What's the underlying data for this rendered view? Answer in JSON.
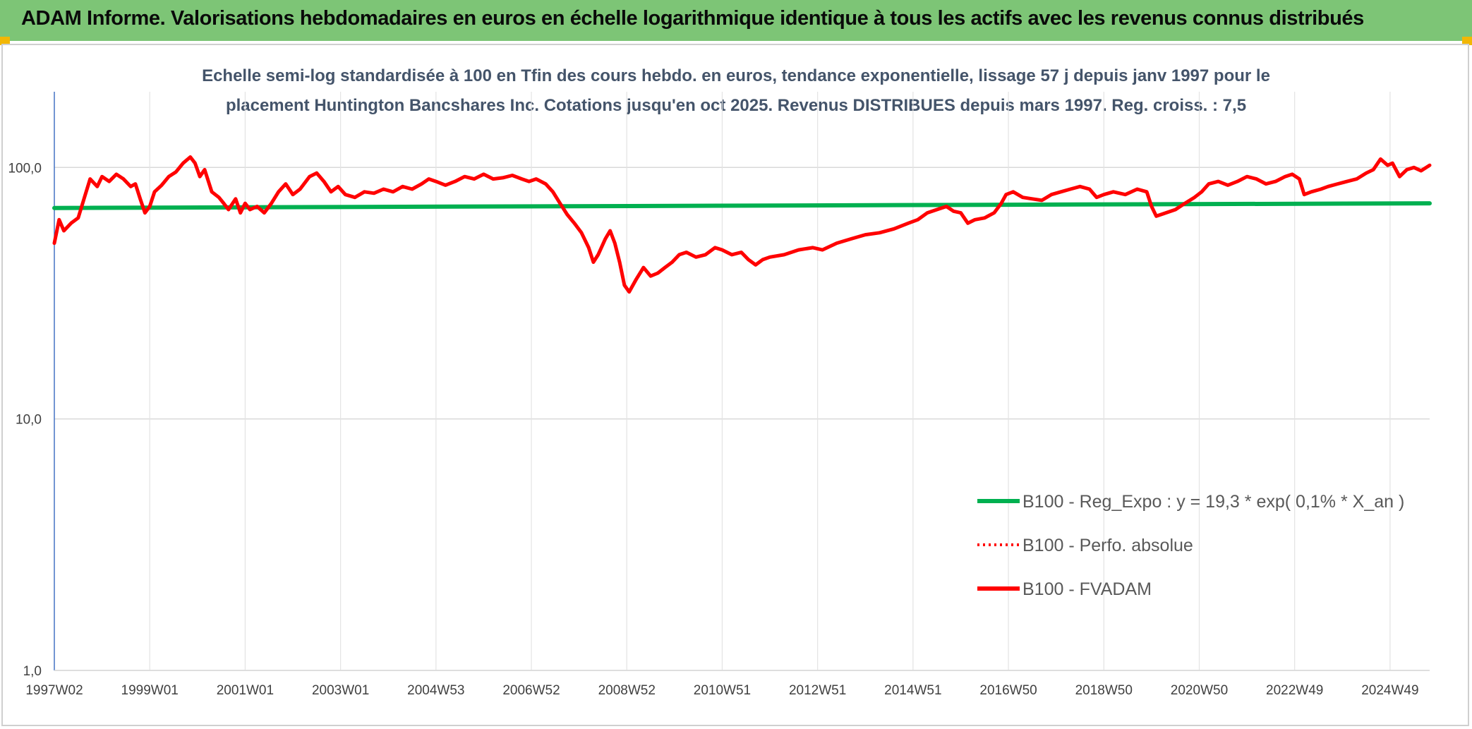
{
  "header": {
    "title": "ADAM Informe. Valorisations hebdomadaires en euros en échelle logarithmique identique à tous les actifs avec les revenus connus distribués"
  },
  "chart_data": {
    "type": "line",
    "title_lines": [
      "Echelle semi-log standardisée à 100 en Tfin des cours hebdo. en euros, tendance exponentielle, lissage 57 j depuis janv 1997 pour le",
      "placement Huntington Bancshares Inc. Cotations jusqu'en oct 2025. Revenus DISTRIBUES depuis mars 1997. Reg. croiss. : 7,5"
    ],
    "y_scale": "log",
    "ylim": [
      1,
      200
    ],
    "y_ticks": [
      {
        "value": 1,
        "label": "1,0"
      },
      {
        "value": 10,
        "label": "10,0"
      },
      {
        "value": 100,
        "label": "100,0"
      }
    ],
    "xlim": [
      1997.0,
      2025.83
    ],
    "x_ticks": [
      {
        "year": 1997.0,
        "label": "1997W02"
      },
      {
        "year": 1999.0,
        "label": "1999W01"
      },
      {
        "year": 2001.0,
        "label": "2001W01"
      },
      {
        "year": 2003.0,
        "label": "2003W01"
      },
      {
        "year": 2005.0,
        "label": "2004W53"
      },
      {
        "year": 2007.0,
        "label": "2006W52"
      },
      {
        "year": 2009.0,
        "label": "2008W52"
      },
      {
        "year": 2011.0,
        "label": "2010W51"
      },
      {
        "year": 2013.0,
        "label": "2012W51"
      },
      {
        "year": 2015.0,
        "label": "2014W51"
      },
      {
        "year": 2017.0,
        "label": "2016W50"
      },
      {
        "year": 2019.0,
        "label": "2018W50"
      },
      {
        "year": 2021.0,
        "label": "2020W50"
      },
      {
        "year": 2023.0,
        "label": "2022W49"
      },
      {
        "year": 2025.0,
        "label": "2024W49"
      }
    ],
    "grid": true,
    "legend_position": "lower-right",
    "series": [
      {
        "name": "B100 - Reg_Expo : y = 19,3 * exp( 0,1% *  X_an )",
        "color": "#00b050",
        "style": "solid",
        "points": [
          [
            1997.0,
            69
          ],
          [
            2025.83,
            72
          ]
        ]
      },
      {
        "name": "B100 - Perfo. absolue",
        "color": "#ff0000",
        "style": "dotted",
        "points": []
      },
      {
        "name": "B100 - FVADAM",
        "color": "#ff0000",
        "style": "solid",
        "points": [
          [
            1997.0,
            50
          ],
          [
            1997.1,
            62
          ],
          [
            1997.2,
            56
          ],
          [
            1997.35,
            60
          ],
          [
            1997.5,
            63
          ],
          [
            1997.65,
            78
          ],
          [
            1997.75,
            90
          ],
          [
            1997.9,
            84
          ],
          [
            1998.0,
            92
          ],
          [
            1998.15,
            88
          ],
          [
            1998.3,
            94
          ],
          [
            1998.45,
            90
          ],
          [
            1998.6,
            84
          ],
          [
            1998.7,
            86
          ],
          [
            1998.8,
            75
          ],
          [
            1998.9,
            66
          ],
          [
            1999.0,
            70
          ],
          [
            1999.1,
            80
          ],
          [
            1999.25,
            85
          ],
          [
            1999.4,
            92
          ],
          [
            1999.55,
            96
          ],
          [
            1999.7,
            104
          ],
          [
            1999.85,
            110
          ],
          [
            1999.95,
            104
          ],
          [
            2000.05,
            92
          ],
          [
            2000.15,
            98
          ],
          [
            2000.3,
            80
          ],
          [
            2000.45,
            76
          ],
          [
            2000.55,
            72
          ],
          [
            2000.65,
            68
          ],
          [
            2000.8,
            75
          ],
          [
            2000.9,
            66
          ],
          [
            2001.0,
            72
          ],
          [
            2001.1,
            68
          ],
          [
            2001.25,
            70
          ],
          [
            2001.4,
            66
          ],
          [
            2001.55,
            72
          ],
          [
            2001.7,
            80
          ],
          [
            2001.85,
            86
          ],
          [
            2002.0,
            78
          ],
          [
            2002.15,
            82
          ],
          [
            2002.35,
            92
          ],
          [
            2002.5,
            95
          ],
          [
            2002.65,
            88
          ],
          [
            2002.8,
            80
          ],
          [
            2002.95,
            84
          ],
          [
            2003.1,
            78
          ],
          [
            2003.3,
            76
          ],
          [
            2003.5,
            80
          ],
          [
            2003.7,
            79
          ],
          [
            2003.9,
            82
          ],
          [
            2004.1,
            80
          ],
          [
            2004.3,
            84
          ],
          [
            2004.5,
            82
          ],
          [
            2004.7,
            86
          ],
          [
            2004.85,
            90
          ],
          [
            2005.0,
            88
          ],
          [
            2005.2,
            85
          ],
          [
            2005.4,
            88
          ],
          [
            2005.6,
            92
          ],
          [
            2005.8,
            90
          ],
          [
            2006.0,
            94
          ],
          [
            2006.2,
            90
          ],
          [
            2006.4,
            91
          ],
          [
            2006.6,
            93
          ],
          [
            2006.8,
            90
          ],
          [
            2006.95,
            88
          ],
          [
            2007.1,
            90
          ],
          [
            2007.3,
            86
          ],
          [
            2007.45,
            80
          ],
          [
            2007.6,
            72
          ],
          [
            2007.75,
            65
          ],
          [
            2007.9,
            60
          ],
          [
            2008.05,
            55
          ],
          [
            2008.2,
            48
          ],
          [
            2008.3,
            42
          ],
          [
            2008.4,
            45
          ],
          [
            2008.55,
            52
          ],
          [
            2008.65,
            56
          ],
          [
            2008.75,
            50
          ],
          [
            2008.85,
            42
          ],
          [
            2008.95,
            34
          ],
          [
            2009.05,
            32
          ],
          [
            2009.2,
            36
          ],
          [
            2009.35,
            40
          ],
          [
            2009.5,
            37
          ],
          [
            2009.65,
            38
          ],
          [
            2009.8,
            40
          ],
          [
            2009.95,
            42
          ],
          [
            2010.1,
            45
          ],
          [
            2010.25,
            46
          ],
          [
            2010.45,
            44
          ],
          [
            2010.65,
            45
          ],
          [
            2010.85,
            48
          ],
          [
            2011.0,
            47
          ],
          [
            2011.2,
            45
          ],
          [
            2011.4,
            46
          ],
          [
            2011.55,
            43
          ],
          [
            2011.7,
            41
          ],
          [
            2011.85,
            43
          ],
          [
            2012.0,
            44
          ],
          [
            2012.3,
            45
          ],
          [
            2012.6,
            47
          ],
          [
            2012.9,
            48
          ],
          [
            2013.1,
            47
          ],
          [
            2013.4,
            50
          ],
          [
            2013.7,
            52
          ],
          [
            2014.0,
            54
          ],
          [
            2014.3,
            55
          ],
          [
            2014.6,
            57
          ],
          [
            2014.9,
            60
          ],
          [
            2015.1,
            62
          ],
          [
            2015.3,
            66
          ],
          [
            2015.5,
            68
          ],
          [
            2015.7,
            70
          ],
          [
            2015.85,
            67
          ],
          [
            2016.0,
            66
          ],
          [
            2016.15,
            60
          ],
          [
            2016.3,
            62
          ],
          [
            2016.5,
            63
          ],
          [
            2016.7,
            66
          ],
          [
            2016.85,
            72
          ],
          [
            2016.95,
            78
          ],
          [
            2017.1,
            80
          ],
          [
            2017.3,
            76
          ],
          [
            2017.5,
            75
          ],
          [
            2017.7,
            74
          ],
          [
            2017.9,
            78
          ],
          [
            2018.1,
            80
          ],
          [
            2018.3,
            82
          ],
          [
            2018.5,
            84
          ],
          [
            2018.7,
            82
          ],
          [
            2018.85,
            76
          ],
          [
            2019.0,
            78
          ],
          [
            2019.2,
            80
          ],
          [
            2019.45,
            78
          ],
          [
            2019.7,
            82
          ],
          [
            2019.9,
            80
          ],
          [
            2020.0,
            70
          ],
          [
            2020.1,
            64
          ],
          [
            2020.3,
            66
          ],
          [
            2020.5,
            68
          ],
          [
            2020.7,
            72
          ],
          [
            2020.9,
            76
          ],
          [
            2021.05,
            80
          ],
          [
            2021.2,
            86
          ],
          [
            2021.4,
            88
          ],
          [
            2021.6,
            85
          ],
          [
            2021.8,
            88
          ],
          [
            2022.0,
            92
          ],
          [
            2022.2,
            90
          ],
          [
            2022.4,
            86
          ],
          [
            2022.6,
            88
          ],
          [
            2022.8,
            92
          ],
          [
            2022.95,
            94
          ],
          [
            2023.1,
            90
          ],
          [
            2023.2,
            78
          ],
          [
            2023.35,
            80
          ],
          [
            2023.55,
            82
          ],
          [
            2023.7,
            84
          ],
          [
            2023.9,
            86
          ],
          [
            2024.1,
            88
          ],
          [
            2024.3,
            90
          ],
          [
            2024.5,
            95
          ],
          [
            2024.65,
            98
          ],
          [
            2024.8,
            108
          ],
          [
            2024.95,
            102
          ],
          [
            2025.05,
            104
          ],
          [
            2025.2,
            92
          ],
          [
            2025.35,
            98
          ],
          [
            2025.5,
            100
          ],
          [
            2025.65,
            97
          ],
          [
            2025.83,
            102
          ]
        ]
      }
    ]
  }
}
